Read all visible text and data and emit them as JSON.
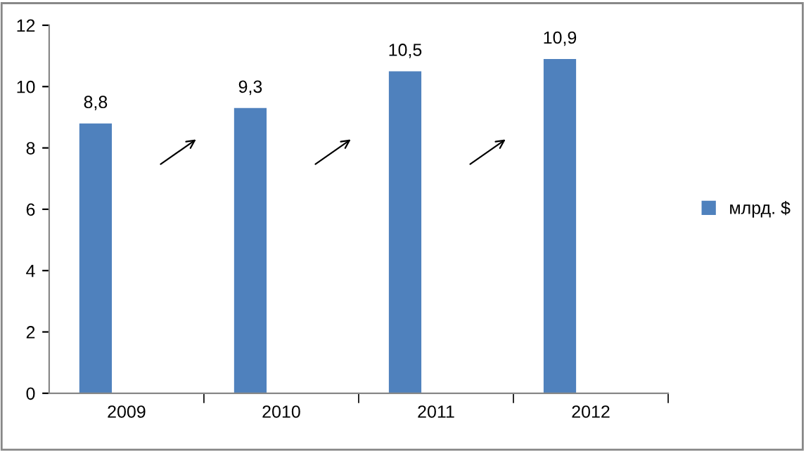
{
  "chart_data": {
    "type": "bar",
    "categories": [
      "2009",
      "2010",
      "2011",
      "2012"
    ],
    "series": [
      {
        "name": "млрд. $",
        "color": "#4f81bd",
        "values": [
          8.8,
          9.3,
          10.5,
          10.9
        ],
        "value_labels": [
          "8,8",
          "9,3",
          "10,5",
          "10,9"
        ]
      }
    ],
    "ylim": [
      0,
      12
    ],
    "yticks": [
      0,
      2,
      4,
      6,
      8,
      10,
      12
    ],
    "grid": false,
    "legend": "right"
  }
}
